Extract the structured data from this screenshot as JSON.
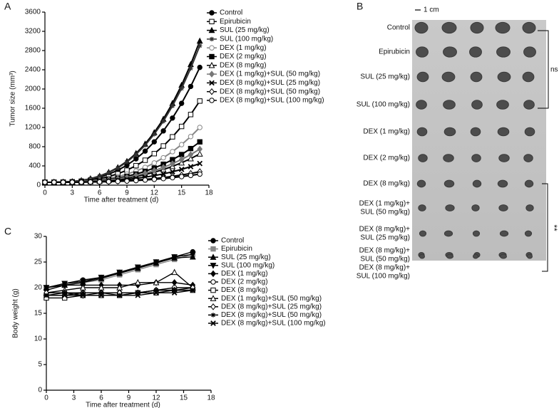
{
  "chart_data": [
    {
      "type": "line",
      "panel": "A",
      "xlabel": "Time after treatment (d)",
      "ylabel": "Tumor size (mm³)",
      "xlim": [
        0,
        18
      ],
      "xticks": [
        0,
        3,
        6,
        9,
        12,
        15,
        18
      ],
      "ylim": [
        0,
        3600
      ],
      "yticks": [
        0,
        400,
        800,
        1200,
        1600,
        2000,
        2400,
        2800,
        3200,
        3600
      ],
      "x": [
        0,
        1,
        2,
        3,
        4,
        5,
        6,
        7,
        8,
        9,
        10,
        11,
        12,
        13,
        14,
        15,
        16,
        17
      ],
      "series": [
        {
          "name": "Control",
          "color": "#000000",
          "marker": "circle",
          "values": [
            60,
            60,
            64,
            73,
            91,
            120,
            165,
            227,
            309,
            414,
            548,
            708,
            901,
            1128,
            1396,
            1702,
            2053,
            2450
          ]
        },
        {
          "name": "Epirubicin",
          "color": "#000000",
          "marker": "square-open",
          "values": [
            60,
            60,
            63,
            69,
            82,
            102,
            134,
            178,
            236,
            310,
            405,
            518,
            655,
            815,
            1005,
            1221,
            1469,
            1750
          ]
        },
        {
          "name": "SUL (25 mg/kg)",
          "color": "#000000",
          "marker": "triangle",
          "values": [
            60,
            61,
            65,
            76,
            98,
            134,
            189,
            266,
            366,
            495,
            660,
            857,
            1095,
            1374,
            1703,
            2080,
            2512,
            3000
          ]
        },
        {
          "name": "SUL (100 mg/kg)",
          "color": "#333333",
          "marker": "star",
          "values": [
            60,
            61,
            65,
            76,
            97,
            131,
            185,
            259,
            355,
            480,
            639,
            830,
            1060,
            1329,
            1648,
            2011,
            2429,
            2900
          ]
        },
        {
          "name": "DEX (1 mg/kg)",
          "color": "#888888",
          "marker": "circle-open",
          "values": [
            60,
            60,
            62,
            66,
            75,
            89,
            110,
            140,
            179,
            229,
            293,
            369,
            461,
            570,
            697,
            843,
            1011,
            1200
          ]
        },
        {
          "name": "DEX (2 mg/kg)",
          "color": "#000000",
          "marker": "square",
          "values": [
            60,
            60,
            61,
            65,
            71,
            81,
            97,
            119,
            147,
            184,
            231,
            288,
            356,
            435,
            530,
            637,
            761,
            900
          ]
        },
        {
          "name": "DEX (8 mg/kg)",
          "color": "#000000",
          "marker": "triangle-open",
          "values": [
            60,
            60,
            61,
            63,
            68,
            75,
            86,
            101,
            121,
            147,
            180,
            220,
            268,
            324,
            390,
            465,
            552,
            650
          ]
        },
        {
          "name": "DEX (1 mg/kg)+SUL (50 mg/kg)",
          "color": "#777777",
          "marker": "diamond",
          "values": [
            60,
            60,
            61,
            64,
            69,
            77,
            90,
            108,
            132,
            162,
            201,
            247,
            303,
            368,
            446,
            534,
            635,
            750
          ]
        },
        {
          "name": "DEX (8 mg/kg)+SUL (25 mg/kg)",
          "color": "#000000",
          "marker": "cross",
          "values": [
            60,
            60,
            61,
            62,
            65,
            70,
            77,
            87,
            101,
            118,
            140,
            166,
            197,
            234,
            278,
            328,
            385,
            450
          ]
        },
        {
          "name": "DEX (8 mg/kg)+SUL (50 mg/kg)",
          "color": "#000000",
          "marker": "diamond-open",
          "values": [
            60,
            60,
            60,
            61,
            63,
            66,
            70,
            75,
            83,
            93,
            105,
            120,
            137,
            158,
            183,
            211,
            243,
            280
          ]
        },
        {
          "name": "DEX (8 mg/kg)+SUL (100 mg/kg)",
          "color": "#000000",
          "marker": "circle-open",
          "values": [
            60,
            60,
            60,
            61,
            62,
            64,
            67,
            72,
            78,
            85,
            95,
            106,
            120,
            136,
            155,
            177,
            202,
            230
          ]
        }
      ]
    },
    {
      "type": "line",
      "panel": "C",
      "xlabel": "Time after treatment (d)",
      "ylabel": "Body weight (g)",
      "xlim": [
        0,
        18
      ],
      "xticks": [
        0,
        3,
        6,
        9,
        12,
        15,
        18
      ],
      "ylim": [
        0,
        30
      ],
      "yticks": [
        0,
        5,
        10,
        15,
        20,
        25,
        30
      ],
      "x": [
        0,
        2,
        4,
        6,
        8,
        10,
        12,
        14,
        16
      ],
      "series": [
        {
          "name": "Control",
          "color": "#000000",
          "marker": "circle",
          "values": [
            20,
            20.8,
            21.5,
            22,
            23,
            24,
            25,
            26,
            27
          ]
        },
        {
          "name": "Epirubicin",
          "color": "#888888",
          "marker": "square",
          "values": [
            20,
            20.5,
            21,
            21.5,
            22.5,
            23.5,
            24.5,
            25.5,
            26.5
          ]
        },
        {
          "name": "SUL (25 mg/kg)",
          "color": "#000000",
          "marker": "triangle",
          "values": [
            20,
            20.5,
            21,
            21.8,
            22.8,
            23.8,
            24.8,
            25.8,
            26
          ]
        },
        {
          "name": "SUL (100 mg/kg)",
          "color": "#000000",
          "marker": "triangle-down",
          "values": [
            20,
            20.8,
            21.2,
            22,
            23,
            24,
            25,
            26,
            26.5
          ]
        },
        {
          "name": "DEX (1 mg/kg)",
          "color": "#000000",
          "marker": "diamond",
          "values": [
            19.5,
            20.5,
            20.5,
            20.5,
            20.5,
            20.5,
            21,
            21,
            20.5
          ]
        },
        {
          "name": "DEX (2 mg/kg)",
          "color": "#000000",
          "marker": "circle-open",
          "values": [
            18.5,
            18.5,
            19,
            19,
            19,
            19,
            19.5,
            20,
            20
          ]
        },
        {
          "name": "DEX (8 mg/kg)",
          "color": "#000000",
          "marker": "square-open",
          "values": [
            18,
            18,
            18.5,
            18.5,
            18.5,
            19,
            19,
            19.5,
            19.5
          ]
        },
        {
          "name": "DEX (1 mg/kg)+SUL (50 mg/kg)",
          "color": "#000000",
          "marker": "triangle-open",
          "values": [
            19,
            19.5,
            20,
            20,
            20,
            21,
            21,
            23,
            20
          ]
        },
        {
          "name": "DEX (8 mg/kg)+SUL (25 mg/kg)",
          "color": "#000000",
          "marker": "diamond-open",
          "values": [
            19,
            19,
            18.5,
            19,
            19,
            19,
            19.5,
            19.5,
            20
          ]
        },
        {
          "name": "DEX (8 mg/kg)+SUL (50 mg/kg)",
          "color": "#000000",
          "marker": "star",
          "values": [
            18.5,
            19,
            19,
            19,
            18.5,
            19,
            19.5,
            19.5,
            19.5
          ]
        },
        {
          "name": "DEX (8 mg/kg)+SUL (100 mg/kg)",
          "color": "#000000",
          "marker": "cross",
          "values": [
            18.5,
            18.5,
            18.5,
            18.5,
            18.5,
            18.5,
            19,
            19,
            19.5
          ]
        }
      ]
    }
  ],
  "photo": {
    "panel": "B",
    "scale_bar": "1 cm",
    "ns_label": "ns",
    "significance": "**",
    "rows": [
      [
        "Control"
      ],
      [
        "Epirubicin"
      ],
      [
        "SUL (25 mg/kg)"
      ],
      [
        "SUL (100 mg/kg)"
      ],
      [
        "DEX (1 mg/kg)"
      ],
      [
        "DEX (2 mg/kg)"
      ],
      [
        "DEX (8 mg/kg)"
      ],
      [
        "DEX (1 mg/kg)+",
        "SUL (50 mg/kg)"
      ],
      [
        "DEX (8 mg/kg)+",
        "SUL (25 mg/kg)"
      ],
      [
        "DEX (8 mg/kg)+",
        "SUL (50 mg/kg)"
      ],
      [
        "DEX (8 mg/kg)+",
        "SUL (100 mg/kg)"
      ]
    ]
  }
}
